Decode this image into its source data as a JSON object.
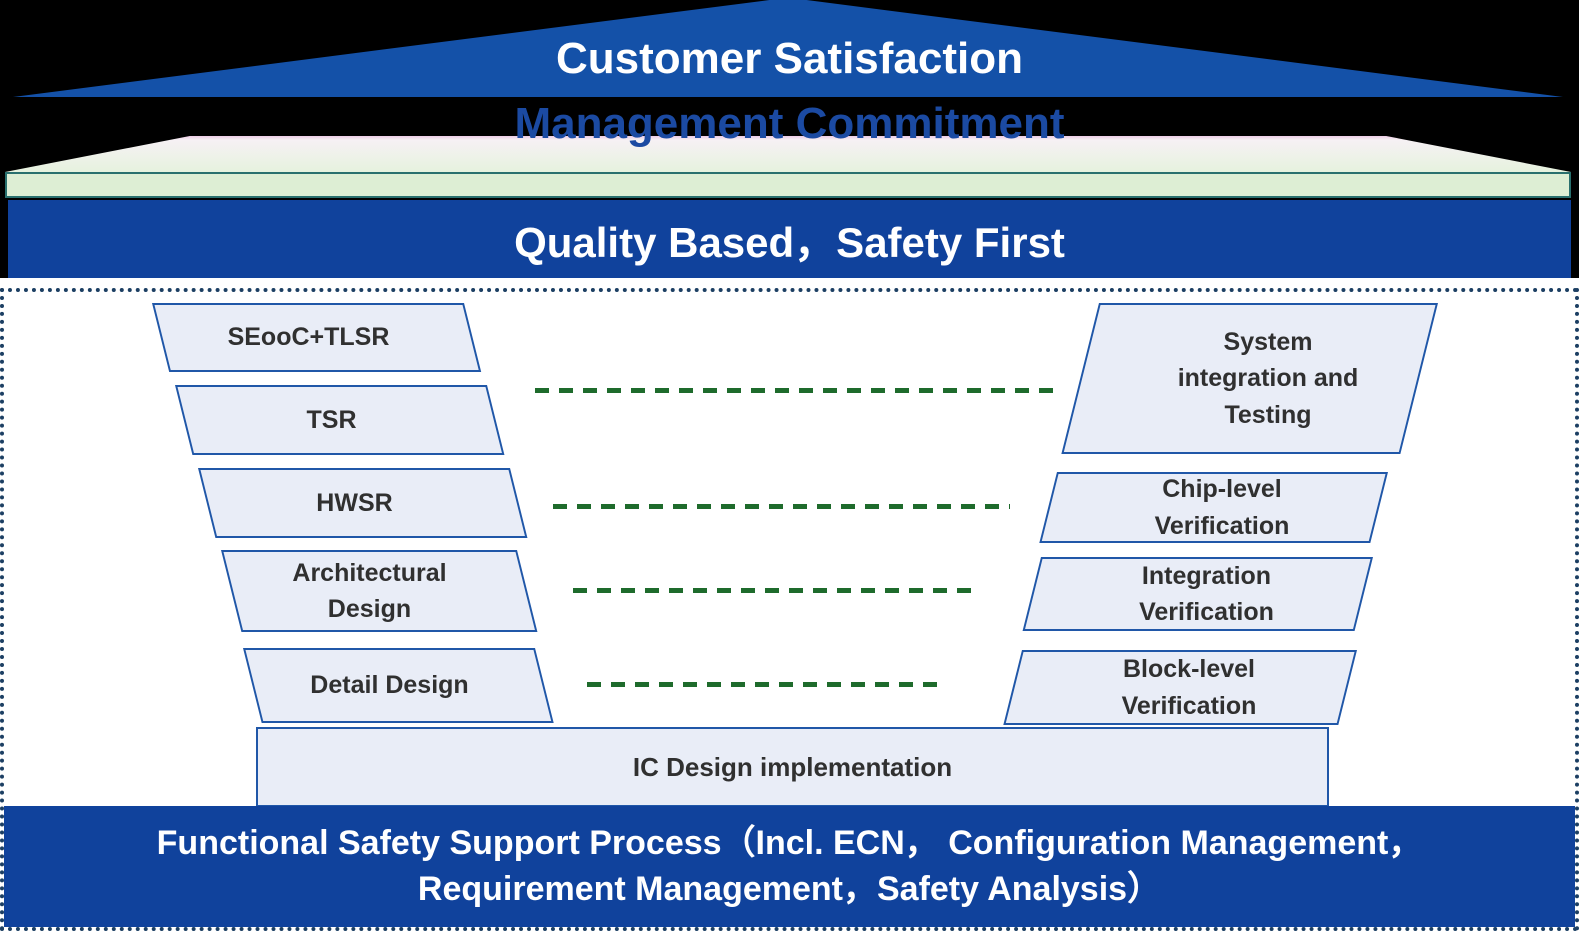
{
  "colors": {
    "band_blue": "#10429c",
    "triangle_blue": "#1451a8",
    "box_fill": "#e9edf7",
    "box_border": "#2057a8",
    "dash_green": "#1e6b2c",
    "slab_green": "#ddeed4",
    "slab_border_teal": "#29706e",
    "panel_border": "#1c3f63",
    "mgmt_text_blue": "#1b4aa2"
  },
  "roof": {
    "title": "Customer Satisfaction",
    "subtitle": "Management Commitment"
  },
  "quality_banner": {
    "label": "Quality Based，Safety First"
  },
  "v_model": {
    "left_boxes": [
      {
        "label": "SEooC+TLSR"
      },
      {
        "label": "TSR"
      },
      {
        "label": "HWSR"
      },
      {
        "label": "Architectural\nDesign"
      },
      {
        "label": "Detail Design"
      }
    ],
    "right_boxes": [
      {
        "label": "System\nintegration and\nTesting"
      },
      {
        "label": "Chip-level\nVerification"
      },
      {
        "label": "Integration\nVerification"
      },
      {
        "label": "Block-level\nVerification"
      }
    ],
    "base_box": {
      "label": "IC Design implementation"
    }
  },
  "support_banner": {
    "line1": "Functional Safety Support Process（Incl. ECN， Configuration Management，",
    "line2": "Requirement Management，Safety Analysis）"
  }
}
